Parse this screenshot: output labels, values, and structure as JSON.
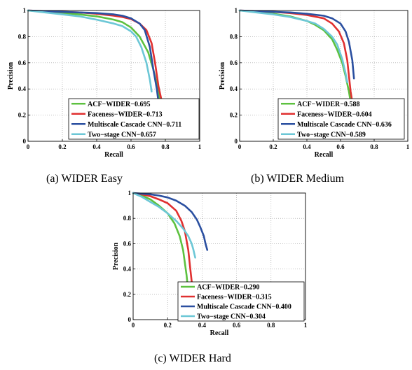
{
  "captions": [
    "(a)  WIDER Easy",
    "(b)  WIDER Medium",
    "(c)  WIDER Hard"
  ],
  "chart_data": [
    {
      "type": "line",
      "title": "",
      "xlabel": "Recall",
      "ylabel": "Precision",
      "xlim": [
        0,
        1
      ],
      "ylim": [
        0,
        1
      ],
      "xticks": [
        "0",
        "0.2",
        "0.4",
        "0.6",
        "0.8",
        "1"
      ],
      "yticks": [
        "0",
        "0.2",
        "0.4",
        "0.6",
        "0.8",
        "1"
      ],
      "grid": true,
      "legend_position": "bottom-right",
      "series": [
        {
          "name": "ACF−WIDER−0.695",
          "color": "#5dc13f",
          "x": [
            0,
            0.1,
            0.2,
            0.3,
            0.4,
            0.5,
            0.55,
            0.6,
            0.65,
            0.7,
            0.73,
            0.76,
            0.78,
            0.8
          ],
          "y": [
            1,
            0.99,
            0.98,
            0.97,
            0.955,
            0.93,
            0.91,
            0.87,
            0.8,
            0.68,
            0.55,
            0.38,
            0.2,
            0.02
          ]
        },
        {
          "name": "Faceness−WIDER−0.713",
          "color": "#e03030",
          "x": [
            0,
            0.1,
            0.2,
            0.3,
            0.4,
            0.5,
            0.55,
            0.6,
            0.65,
            0.69,
            0.72,
            0.74,
            0.76,
            0.78
          ],
          "y": [
            1,
            0.995,
            0.99,
            0.985,
            0.975,
            0.96,
            0.95,
            0.935,
            0.9,
            0.85,
            0.75,
            0.6,
            0.42,
            0.3
          ]
        },
        {
          "name": "Multiscale Cascade CNN−0.711",
          "color": "#2a4fa0",
          "x": [
            0,
            0.1,
            0.2,
            0.3,
            0.4,
            0.5,
            0.55,
            0.6,
            0.65,
            0.68,
            0.71,
            0.73,
            0.75,
            0.76
          ],
          "y": [
            1,
            0.995,
            0.99,
            0.985,
            0.98,
            0.97,
            0.96,
            0.94,
            0.9,
            0.85,
            0.72,
            0.55,
            0.4,
            0.3
          ]
        },
        {
          "name": "Two−stage CNN−0.657",
          "color": "#6cc7d6",
          "x": [
            0,
            0.1,
            0.2,
            0.3,
            0.4,
            0.5,
            0.55,
            0.6,
            0.63,
            0.66,
            0.69,
            0.71,
            0.72
          ],
          "y": [
            1,
            0.985,
            0.97,
            0.955,
            0.93,
            0.9,
            0.88,
            0.84,
            0.8,
            0.72,
            0.6,
            0.47,
            0.38
          ]
        }
      ]
    },
    {
      "type": "line",
      "title": "",
      "xlabel": "Recall",
      "ylabel": "Precision",
      "xlim": [
        0,
        1
      ],
      "ylim": [
        0,
        1
      ],
      "xticks": [
        "0",
        "0.2",
        "0.4",
        "0.6",
        "0.8",
        "1"
      ],
      "yticks": [
        "0",
        "0.2",
        "0.4",
        "0.6",
        "0.8",
        "1"
      ],
      "grid": true,
      "legend_position": "bottom-right",
      "series": [
        {
          "name": "ACF−WIDER−0.588",
          "color": "#5dc13f",
          "x": [
            0,
            0.1,
            0.2,
            0.3,
            0.4,
            0.45,
            0.5,
            0.55,
            0.58,
            0.61,
            0.63,
            0.65,
            0.67,
            0.69,
            0.7
          ],
          "y": [
            1,
            0.99,
            0.975,
            0.955,
            0.92,
            0.89,
            0.85,
            0.78,
            0.7,
            0.6,
            0.5,
            0.38,
            0.22,
            0.1,
            0.02
          ]
        },
        {
          "name": "Faceness−WIDER−0.604",
          "color": "#e03030",
          "x": [
            0,
            0.1,
            0.2,
            0.3,
            0.4,
            0.5,
            0.55,
            0.59,
            0.62,
            0.64,
            0.65,
            0.66,
            0.67
          ],
          "y": [
            1,
            0.995,
            0.99,
            0.98,
            0.965,
            0.94,
            0.9,
            0.84,
            0.75,
            0.62,
            0.5,
            0.38,
            0.3
          ]
        },
        {
          "name": "Multiscale Cascade CNN−0.636",
          "color": "#2a4fa0",
          "x": [
            0,
            0.1,
            0.2,
            0.3,
            0.4,
            0.5,
            0.55,
            0.6,
            0.63,
            0.65,
            0.67,
            0.68
          ],
          "y": [
            1,
            0.995,
            0.99,
            0.985,
            0.975,
            0.96,
            0.94,
            0.9,
            0.84,
            0.76,
            0.62,
            0.48
          ]
        },
        {
          "name": "Two−stage CNN−0.589",
          "color": "#6cc7d6",
          "x": [
            0,
            0.1,
            0.2,
            0.3,
            0.4,
            0.45,
            0.5,
            0.55,
            0.58,
            0.61,
            0.63,
            0.64
          ],
          "y": [
            1,
            0.985,
            0.97,
            0.95,
            0.92,
            0.9,
            0.86,
            0.8,
            0.74,
            0.63,
            0.52,
            0.45
          ]
        }
      ]
    },
    {
      "type": "line",
      "title": "",
      "xlabel": "Recall",
      "ylabel": "Precision",
      "xlim": [
        0,
        1
      ],
      "ylim": [
        0,
        1
      ],
      "xticks": [
        "0",
        "0.2",
        "0.4",
        "0.6",
        "0.8",
        "1"
      ],
      "yticks": [
        "0",
        "0.2",
        "0.4",
        "0.6",
        "0.8",
        "1"
      ],
      "grid": true,
      "legend_position": "bottom-right",
      "series": [
        {
          "name": "ACF−WIDER−0.290",
          "color": "#5dc13f",
          "x": [
            0,
            0.05,
            0.1,
            0.15,
            0.2,
            0.24,
            0.27,
            0.29,
            0.3,
            0.31,
            0.32,
            0.33
          ],
          "y": [
            1,
            0.98,
            0.95,
            0.9,
            0.84,
            0.76,
            0.66,
            0.55,
            0.45,
            0.35,
            0.22,
            0.1
          ]
        },
        {
          "name": "Faceness−WIDER−0.315",
          "color": "#e03030",
          "x": [
            0,
            0.05,
            0.1,
            0.15,
            0.2,
            0.25,
            0.28,
            0.3,
            0.32,
            0.33,
            0.34,
            0.35
          ],
          "y": [
            1,
            0.99,
            0.975,
            0.95,
            0.92,
            0.86,
            0.78,
            0.7,
            0.55,
            0.42,
            0.3,
            0.18
          ]
        },
        {
          "name": "Multiscale Cascade CNN−0.400",
          "color": "#2a4fa0",
          "x": [
            0,
            0.05,
            0.1,
            0.15,
            0.2,
            0.25,
            0.3,
            0.34,
            0.37,
            0.39,
            0.41,
            0.42,
            0.43
          ],
          "y": [
            1,
            0.995,
            0.99,
            0.98,
            0.965,
            0.94,
            0.9,
            0.85,
            0.79,
            0.73,
            0.66,
            0.6,
            0.55
          ]
        },
        {
          "name": "Two−stage CNN−0.304",
          "color": "#6cc7d6",
          "x": [
            0,
            0.05,
            0.1,
            0.15,
            0.2,
            0.25,
            0.29,
            0.32,
            0.34,
            0.35,
            0.36
          ],
          "y": [
            1,
            0.97,
            0.93,
            0.89,
            0.84,
            0.78,
            0.72,
            0.66,
            0.6,
            0.55,
            0.49
          ]
        }
      ]
    }
  ]
}
